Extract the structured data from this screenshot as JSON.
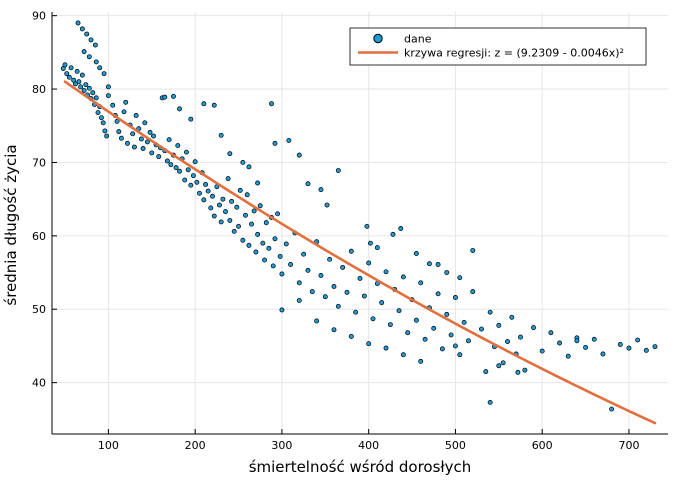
{
  "chart_data": {
    "type": "scatter",
    "xlabel": "śmiertelność wśród dorosłych",
    "ylabel": "średnia długość życia",
    "xlim": [
      35,
      745
    ],
    "ylim": [
      33,
      90.5
    ],
    "xticks": [
      100,
      200,
      300,
      400,
      500,
      600,
      700
    ],
    "yticks": [
      40,
      50,
      60,
      70,
      80,
      90
    ],
    "grid": true,
    "legend_position": "top-right",
    "colors": {
      "points": "#1f9bd6",
      "point_edge": "#000000",
      "line": "#e26f3e"
    },
    "series": [
      {
        "name": "dane",
        "kind": "scatter",
        "points": [
          [
            48,
            82.8
          ],
          [
            50,
            83.3
          ],
          [
            52,
            82.1
          ],
          [
            55,
            81.6
          ],
          [
            57,
            82.9
          ],
          [
            60,
            81.2
          ],
          [
            62,
            80.7
          ],
          [
            64,
            82.4
          ],
          [
            66,
            81.0
          ],
          [
            68,
            80.3
          ],
          [
            70,
            81.9
          ],
          [
            72,
            79.8
          ],
          [
            74,
            80.6
          ],
          [
            76,
            79.2
          ],
          [
            78,
            80.1
          ],
          [
            80,
            78.7
          ],
          [
            82,
            79.5
          ],
          [
            84,
            77.9
          ],
          [
            86,
            78.8
          ],
          [
            88,
            76.8
          ],
          [
            90,
            77.6
          ],
          [
            92,
            76.1
          ],
          [
            94,
            75.4
          ],
          [
            96,
            74.3
          ],
          [
            98,
            73.6
          ],
          [
            65,
            89.0
          ],
          [
            70,
            88.2
          ],
          [
            75,
            87.5
          ],
          [
            80,
            86.7
          ],
          [
            85,
            86.0
          ],
          [
            72,
            85.1
          ],
          [
            78,
            84.4
          ],
          [
            86,
            83.7
          ],
          [
            90,
            82.9
          ],
          [
            95,
            82.1
          ],
          [
            100,
            79.1
          ],
          [
            100,
            80.3
          ],
          [
            105,
            77.8
          ],
          [
            108,
            76.4
          ],
          [
            110,
            75.6
          ],
          [
            112,
            74.2
          ],
          [
            115,
            73.3
          ],
          [
            118,
            76.9
          ],
          [
            120,
            78.2
          ],
          [
            122,
            72.6
          ],
          [
            125,
            75.1
          ],
          [
            128,
            73.9
          ],
          [
            130,
            72.1
          ],
          [
            132,
            76.4
          ],
          [
            135,
            74.6
          ],
          [
            138,
            73.2
          ],
          [
            140,
            71.9
          ],
          [
            142,
            75.4
          ],
          [
            145,
            72.8
          ],
          [
            148,
            74.1
          ],
          [
            150,
            71.3
          ],
          [
            152,
            73.6
          ],
          [
            155,
            72.4
          ],
          [
            158,
            70.8
          ],
          [
            160,
            72.0
          ],
          [
            162,
            78.8
          ],
          [
            165,
            71.6
          ],
          [
            168,
            70.2
          ],
          [
            170,
            73.1
          ],
          [
            172,
            69.7
          ],
          [
            175,
            71.0
          ],
          [
            178,
            69.3
          ],
          [
            180,
            72.3
          ],
          [
            182,
            68.8
          ],
          [
            185,
            70.5
          ],
          [
            188,
            67.6
          ],
          [
            190,
            71.4
          ],
          [
            192,
            69.0
          ],
          [
            195,
            66.9
          ],
          [
            198,
            68.2
          ],
          [
            200,
            70.1
          ],
          [
            202,
            67.3
          ],
          [
            205,
            65.8
          ],
          [
            208,
            68.6
          ],
          [
            210,
            64.9
          ],
          [
            212,
            67.0
          ],
          [
            215,
            66.1
          ],
          [
            218,
            63.8
          ],
          [
            220,
            65.4
          ],
          [
            222,
            62.7
          ],
          [
            225,
            66.7
          ],
          [
            228,
            64.2
          ],
          [
            230,
            61.9
          ],
          [
            232,
            65.0
          ],
          [
            235,
            63.3
          ],
          [
            238,
            67.8
          ],
          [
            240,
            62.1
          ],
          [
            242,
            64.7
          ],
          [
            245,
            60.6
          ],
          [
            248,
            63.9
          ],
          [
            250,
            61.3
          ],
          [
            252,
            66.2
          ],
          [
            255,
            59.4
          ],
          [
            258,
            62.8
          ],
          [
            260,
            65.6
          ],
          [
            262,
            58.7
          ],
          [
            265,
            61.6
          ],
          [
            268,
            63.4
          ],
          [
            270,
            57.8
          ],
          [
            272,
            60.2
          ],
          [
            275,
            64.1
          ],
          [
            278,
            59.0
          ],
          [
            280,
            56.7
          ],
          [
            282,
            61.8
          ],
          [
            285,
            58.3
          ],
          [
            288,
            62.5
          ],
          [
            290,
            55.9
          ],
          [
            292,
            59.6
          ],
          [
            295,
            63.0
          ],
          [
            298,
            57.2
          ],
          [
            300,
            54.8
          ],
          [
            305,
            58.9
          ],
          [
            310,
            56.1
          ],
          [
            315,
            60.4
          ],
          [
            320,
            53.6
          ],
          [
            325,
            57.5
          ],
          [
            330,
            55.3
          ],
          [
            335,
            52.4
          ],
          [
            340,
            59.2
          ],
          [
            345,
            54.6
          ],
          [
            350,
            51.7
          ],
          [
            355,
            56.8
          ],
          [
            360,
            53.1
          ],
          [
            365,
            50.4
          ],
          [
            370,
            55.7
          ],
          [
            375,
            52.3
          ],
          [
            380,
            57.9
          ],
          [
            385,
            49.6
          ],
          [
            390,
            54.2
          ],
          [
            395,
            51.8
          ],
          [
            400,
            56.3
          ],
          [
            405,
            48.7
          ],
          [
            410,
            53.5
          ],
          [
            415,
            50.9
          ],
          [
            420,
            55.1
          ],
          [
            425,
            47.9
          ],
          [
            430,
            52.7
          ],
          [
            435,
            49.8
          ],
          [
            440,
            54.4
          ],
          [
            445,
            46.8
          ],
          [
            450,
            51.3
          ],
          [
            455,
            48.5
          ],
          [
            460,
            53.6
          ],
          [
            465,
            45.9
          ],
          [
            470,
            50.2
          ],
          [
            475,
            47.4
          ],
          [
            480,
            52.1
          ],
          [
            485,
            44.6
          ],
          [
            490,
            49.3
          ],
          [
            495,
            46.5
          ],
          [
            500,
            51.6
          ],
          [
            505,
            43.8
          ],
          [
            510,
            48.2
          ],
          [
            515,
            45.7
          ],
          [
            520,
            52.4
          ],
          [
            530,
            47.3
          ],
          [
            535,
            41.5
          ],
          [
            540,
            49.6
          ],
          [
            545,
            44.9
          ],
          [
            550,
            47.8
          ],
          [
            555,
            42.7
          ],
          [
            560,
            45.6
          ],
          [
            565,
            48.9
          ],
          [
            570,
            43.9
          ],
          [
            575,
            46.2
          ],
          [
            580,
            41.7
          ],
          [
            590,
            47.5
          ],
          [
            600,
            44.3
          ],
          [
            610,
            46.8
          ],
          [
            620,
            45.4
          ],
          [
            630,
            43.6
          ],
          [
            640,
            46.1
          ],
          [
            650,
            44.8
          ],
          [
            660,
            45.9
          ],
          [
            670,
            43.9
          ],
          [
            680,
            36.4
          ],
          [
            690,
            45.2
          ],
          [
            700,
            44.7
          ],
          [
            710,
            45.8
          ],
          [
            720,
            44.4
          ],
          [
            730,
            44.9
          ],
          [
            165,
            78.9
          ],
          [
            175,
            79.0
          ],
          [
            182,
            77.3
          ],
          [
            195,
            75.9
          ],
          [
            210,
            78.0
          ],
          [
            222,
            77.8
          ],
          [
            230,
            73.7
          ],
          [
            240,
            71.2
          ],
          [
            255,
            70.0
          ],
          [
            262,
            69.4
          ],
          [
            272,
            67.2
          ],
          [
            288,
            78.0
          ],
          [
            292,
            72.6
          ],
          [
            308,
            73.0
          ],
          [
            320,
            71.0
          ],
          [
            330,
            67.1
          ],
          [
            345,
            66.3
          ],
          [
            352,
            64.2
          ],
          [
            365,
            68.9
          ],
          [
            398,
            61.3
          ],
          [
            402,
            59.0
          ],
          [
            410,
            58.4
          ],
          [
            428,
            60.2
          ],
          [
            437,
            61.0
          ],
          [
            455,
            57.6
          ],
          [
            470,
            56.2
          ],
          [
            480,
            56.1
          ],
          [
            490,
            55.0
          ],
          [
            505,
            54.3
          ],
          [
            520,
            58.0
          ],
          [
            340,
            48.4
          ],
          [
            360,
            47.2
          ],
          [
            380,
            46.3
          ],
          [
            400,
            45.3
          ],
          [
            420,
            44.7
          ],
          [
            440,
            43.8
          ],
          [
            460,
            42.9
          ],
          [
            500,
            45.0
          ],
          [
            540,
            37.3
          ],
          [
            550,
            42.3
          ],
          [
            572,
            41.4
          ],
          [
            640,
            45.7
          ],
          [
            300,
            49.9
          ],
          [
            320,
            51.2
          ]
        ]
      },
      {
        "name": "krzywa regresji: z = (9.2309 - 0.0046x)²",
        "kind": "line",
        "curve": {
          "a": 9.2309,
          "b": -0.0046,
          "x_from": 50,
          "x_to": 730
        }
      }
    ]
  }
}
